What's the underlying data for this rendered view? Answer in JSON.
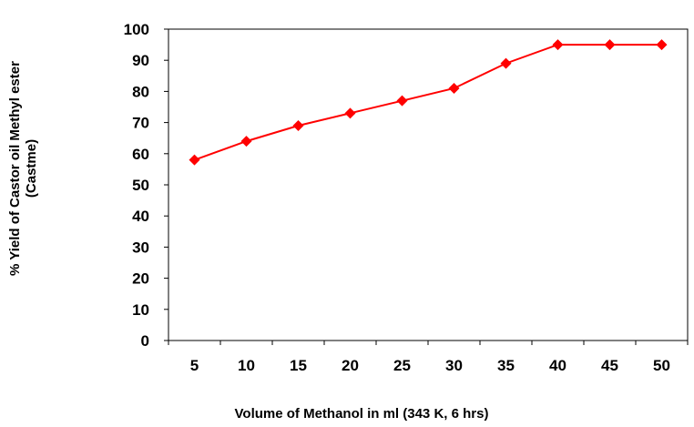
{
  "chart_data": {
    "type": "line",
    "xlabel": "Volume of Methanol in ml (343 K, 6 hrs)",
    "ylabel_lines": [
      "% Yield of Castor oil Methyl ester",
      "(Castme)"
    ],
    "categories": [
      "5",
      "10",
      "15",
      "20",
      "25",
      "30",
      "35",
      "40",
      "45",
      "50"
    ],
    "series": [
      {
        "values": [
          58,
          64,
          69,
          73,
          77,
          81,
          89,
          95,
          95,
          95
        ],
        "color": "#ff0000",
        "marker": "diamond"
      }
    ],
    "ylim": [
      0,
      100
    ],
    "yticks": [
      0,
      10,
      20,
      30,
      40,
      50,
      60,
      70,
      80,
      90,
      100
    ],
    "grid": false,
    "legend": "none",
    "plot_border_color": "#000000"
  }
}
